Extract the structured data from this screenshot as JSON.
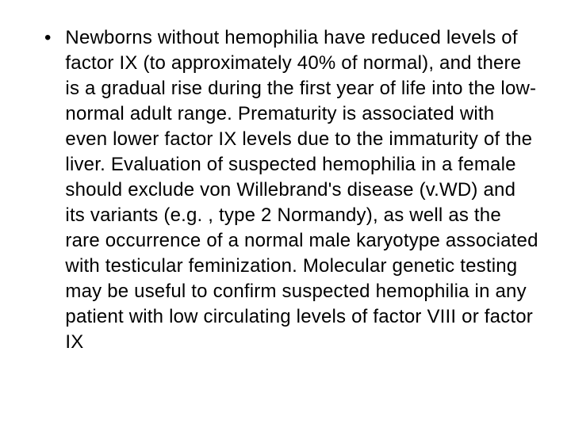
{
  "slide": {
    "bullets": [
      {
        "text": "Newborns without hemophilia have reduced levels of factor IX (to approximately 40% of normal), and there is a gradual rise during the first year of life into the low-normal adult range. Prematurity is associated with even lower factor IX levels due to the immaturity of the liver. Evaluation of suspected hemophilia in a female should exclude von Willebrand's disease (v.WD) and its variants (e.g. , type 2 Normandy), as well as the rare occurrence of a normal male karyotype associated with testicular feminization. Molecular genetic testing may be useful to confirm suspected hemophilia in any patient with low circulating levels of factor VIII or factor IX"
      }
    ]
  },
  "style": {
    "font_size": 24,
    "line_height": 32,
    "text_color": "#000000",
    "background_color": "#ffffff",
    "bullet_char": "•"
  }
}
